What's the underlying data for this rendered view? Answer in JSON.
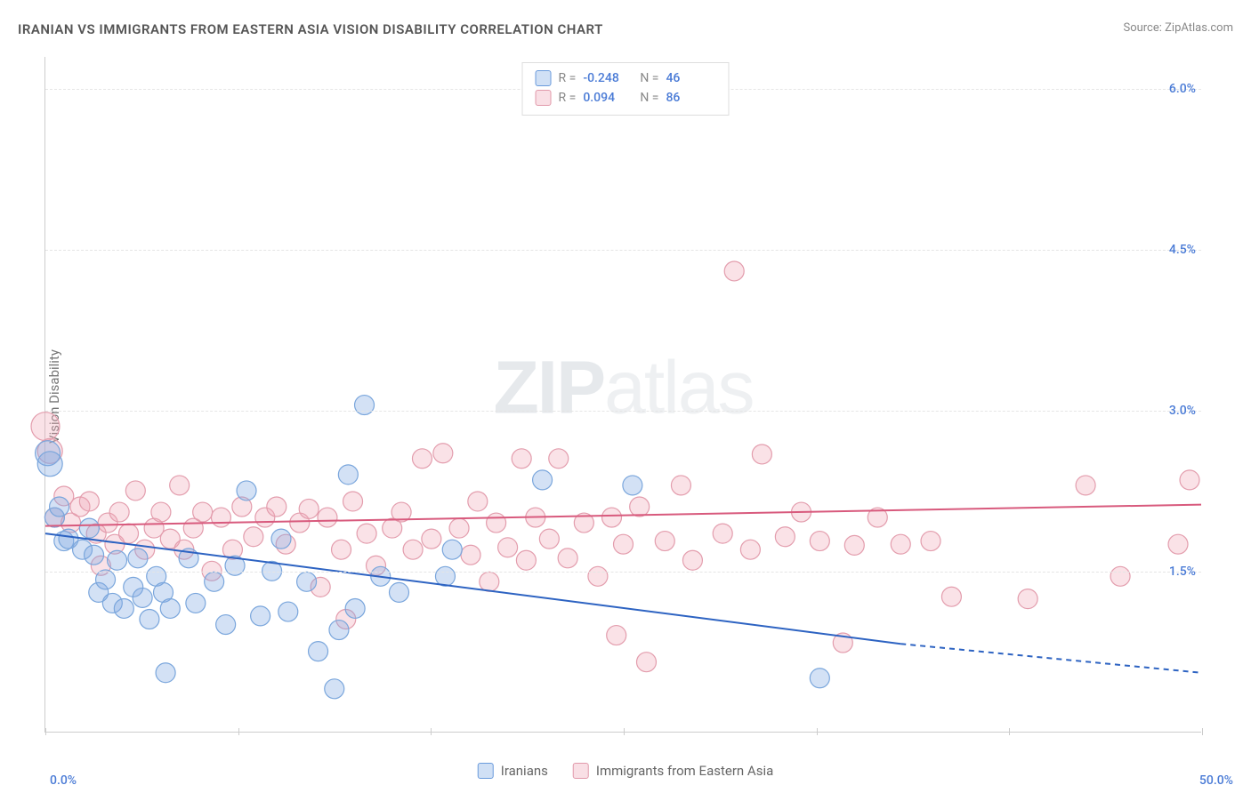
{
  "title": "IRANIAN VS IMMIGRANTS FROM EASTERN ASIA VISION DISABILITY CORRELATION CHART",
  "source_label": "Source: ZipAtlas.com",
  "ylabel": "Vision Disability",
  "watermark_zip": "ZIP",
  "watermark_atlas": "atlas",
  "xlim": [
    0.0,
    50.0
  ],
  "ylim": [
    0.0,
    6.3
  ],
  "yticks": [
    {
      "v": 1.5,
      "label": "1.5%"
    },
    {
      "v": 3.0,
      "label": "3.0%"
    },
    {
      "v": 4.5,
      "label": "4.5%"
    },
    {
      "v": 6.0,
      "label": "6.0%"
    }
  ],
  "xticks_minor": [
    0,
    8.33,
    16.67,
    25.0,
    33.33,
    41.67,
    50.0
  ],
  "xtick_labels": {
    "left": "0.0%",
    "right": "50.0%"
  },
  "legend_top": {
    "rows": [
      {
        "swatch": "blue",
        "R_label": "R =",
        "R": "-0.248",
        "N_label": "N =",
        "N": "46"
      },
      {
        "swatch": "pink",
        "R_label": "R =",
        "R": "0.094",
        "N_label": "N =",
        "N": "86"
      }
    ]
  },
  "legend_bottom": {
    "items": [
      {
        "swatch": "blue",
        "label": "Iranians"
      },
      {
        "swatch": "pink",
        "label": "Immigrants from Eastern Asia"
      }
    ]
  },
  "series": {
    "blue": {
      "color_fill": "rgba(130,170,225,0.35)",
      "color_stroke": "#7aa6dc",
      "radius": 11,
      "trend": {
        "x1": 0,
        "y1": 1.85,
        "x2": 37,
        "y2": 0.82,
        "x2b": 50,
        "y2b": 0.55,
        "stroke": "#2d63c2",
        "width": 2
      },
      "points": [
        [
          0.1,
          2.6,
          14
        ],
        [
          0.2,
          2.5,
          14
        ],
        [
          0.4,
          2.0,
          11
        ],
        [
          0.6,
          2.1,
          11
        ],
        [
          0.8,
          1.78,
          11
        ],
        [
          1.0,
          1.8,
          11
        ],
        [
          1.6,
          1.7,
          11
        ],
        [
          1.9,
          1.9,
          11
        ],
        [
          2.1,
          1.65,
          11
        ],
        [
          2.3,
          1.3,
          11
        ],
        [
          2.6,
          1.42,
          11
        ],
        [
          2.9,
          1.2,
          11
        ],
        [
          3.1,
          1.6,
          11
        ],
        [
          3.4,
          1.15,
          11
        ],
        [
          3.8,
          1.35,
          11
        ],
        [
          4.0,
          1.62,
          11
        ],
        [
          4.2,
          1.25,
          11
        ],
        [
          4.5,
          1.05,
          11
        ],
        [
          4.8,
          1.45,
          11
        ],
        [
          5.1,
          1.3,
          11
        ],
        [
          5.4,
          1.15,
          11
        ],
        [
          5.2,
          0.55,
          11
        ],
        [
          6.2,
          1.62,
          11
        ],
        [
          6.5,
          1.2,
          11
        ],
        [
          7.3,
          1.4,
          11
        ],
        [
          7.8,
          1.0,
          11
        ],
        [
          8.2,
          1.55,
          11
        ],
        [
          8.7,
          2.25,
          11
        ],
        [
          9.3,
          1.08,
          11
        ],
        [
          9.8,
          1.5,
          11
        ],
        [
          10.2,
          1.8,
          11
        ],
        [
          10.5,
          1.12,
          11
        ],
        [
          11.3,
          1.4,
          11
        ],
        [
          11.8,
          0.75,
          11
        ],
        [
          12.7,
          0.95,
          11
        ],
        [
          12.5,
          0.4,
          11
        ],
        [
          13.1,
          2.4,
          11
        ],
        [
          13.4,
          1.15,
          11
        ],
        [
          13.8,
          3.05,
          11
        ],
        [
          14.5,
          1.45,
          11
        ],
        [
          15.3,
          1.3,
          11
        ],
        [
          17.3,
          1.45,
          11
        ],
        [
          17.6,
          1.7,
          11
        ],
        [
          21.5,
          2.35,
          11
        ],
        [
          25.4,
          2.3,
          11
        ],
        [
          33.5,
          0.5,
          11
        ]
      ]
    },
    "pink": {
      "color_fill": "rgba(238,165,180,0.32)",
      "color_stroke": "#e39dad",
      "radius": 11,
      "trend": {
        "x1": 0,
        "y1": 1.92,
        "x2": 50,
        "y2": 2.12,
        "stroke": "#d85a7d",
        "width": 2
      },
      "points": [
        [
          0.0,
          2.85,
          16
        ],
        [
          0.2,
          2.62,
          14
        ],
        [
          0.4,
          2.0,
          11
        ],
        [
          0.8,
          2.2,
          11
        ],
        [
          1.1,
          1.95,
          11
        ],
        [
          1.5,
          2.1,
          11
        ],
        [
          1.9,
          2.15,
          11
        ],
        [
          2.2,
          1.85,
          11
        ],
        [
          2.4,
          1.55,
          11
        ],
        [
          2.7,
          1.95,
          11
        ],
        [
          3.0,
          1.75,
          11
        ],
        [
          3.2,
          2.05,
          11
        ],
        [
          3.6,
          1.85,
          11
        ],
        [
          3.9,
          2.25,
          11
        ],
        [
          4.3,
          1.7,
          11
        ],
        [
          4.7,
          1.9,
          11
        ],
        [
          5.0,
          2.05,
          11
        ],
        [
          5.4,
          1.8,
          11
        ],
        [
          5.8,
          2.3,
          11
        ],
        [
          6.0,
          1.7,
          11
        ],
        [
          6.4,
          1.9,
          11
        ],
        [
          6.8,
          2.05,
          11
        ],
        [
          7.2,
          1.5,
          11
        ],
        [
          7.6,
          2.0,
          11
        ],
        [
          8.1,
          1.7,
          11
        ],
        [
          8.5,
          2.1,
          11
        ],
        [
          9.0,
          1.82,
          11
        ],
        [
          9.5,
          2.0,
          11
        ],
        [
          10.0,
          2.1,
          11
        ],
        [
          10.4,
          1.75,
          11
        ],
        [
          11.0,
          1.95,
          11
        ],
        [
          11.4,
          2.08,
          11
        ],
        [
          11.9,
          1.35,
          11
        ],
        [
          12.2,
          2.0,
          11
        ],
        [
          12.8,
          1.7,
          11
        ],
        [
          13.0,
          1.05,
          11
        ],
        [
          13.3,
          2.15,
          11
        ],
        [
          13.9,
          1.85,
          11
        ],
        [
          14.3,
          1.55,
          11
        ],
        [
          15.0,
          1.9,
          11
        ],
        [
          15.4,
          2.05,
          11
        ],
        [
          15.9,
          1.7,
          11
        ],
        [
          16.3,
          2.55,
          11
        ],
        [
          16.7,
          1.8,
          11
        ],
        [
          17.2,
          2.6,
          11
        ],
        [
          17.9,
          1.9,
          11
        ],
        [
          18.4,
          1.65,
          11
        ],
        [
          18.7,
          2.15,
          11
        ],
        [
          19.2,
          1.4,
          11
        ],
        [
          19.5,
          1.95,
          11
        ],
        [
          20.0,
          1.72,
          11
        ],
        [
          20.6,
          2.55,
          11
        ],
        [
          20.8,
          1.6,
          11
        ],
        [
          21.2,
          2.0,
          11
        ],
        [
          21.8,
          1.8,
          11
        ],
        [
          22.2,
          2.55,
          11
        ],
        [
          22.6,
          1.62,
          11
        ],
        [
          23.3,
          1.95,
          11
        ],
        [
          23.9,
          1.45,
          11
        ],
        [
          24.5,
          2.0,
          11
        ],
        [
          25.0,
          1.75,
          11
        ],
        [
          24.7,
          0.9,
          11
        ],
        [
          25.7,
          2.1,
          11
        ],
        [
          26.8,
          1.78,
          11
        ],
        [
          27.5,
          2.3,
          11
        ],
        [
          26.0,
          0.65,
          11
        ],
        [
          28.0,
          1.6,
          11
        ],
        [
          28.3,
          6.1,
          11
        ],
        [
          29.3,
          1.85,
          11
        ],
        [
          29.8,
          4.3,
          11
        ],
        [
          30.5,
          1.7,
          11
        ],
        [
          31.0,
          2.59,
          11
        ],
        [
          32.0,
          1.82,
          11
        ],
        [
          32.7,
          2.05,
          11
        ],
        [
          33.5,
          1.78,
          11
        ],
        [
          34.5,
          0.83,
          11
        ],
        [
          35.0,
          1.74,
          11
        ],
        [
          36.0,
          2.0,
          11
        ],
        [
          37.0,
          1.75,
          11
        ],
        [
          38.3,
          1.78,
          11
        ],
        [
          39.2,
          1.26,
          11
        ],
        [
          42.5,
          1.24,
          11
        ],
        [
          45.0,
          2.3,
          11
        ],
        [
          46.5,
          1.45,
          11
        ],
        [
          49.0,
          1.75,
          11
        ],
        [
          49.5,
          2.35,
          11
        ]
      ]
    }
  }
}
